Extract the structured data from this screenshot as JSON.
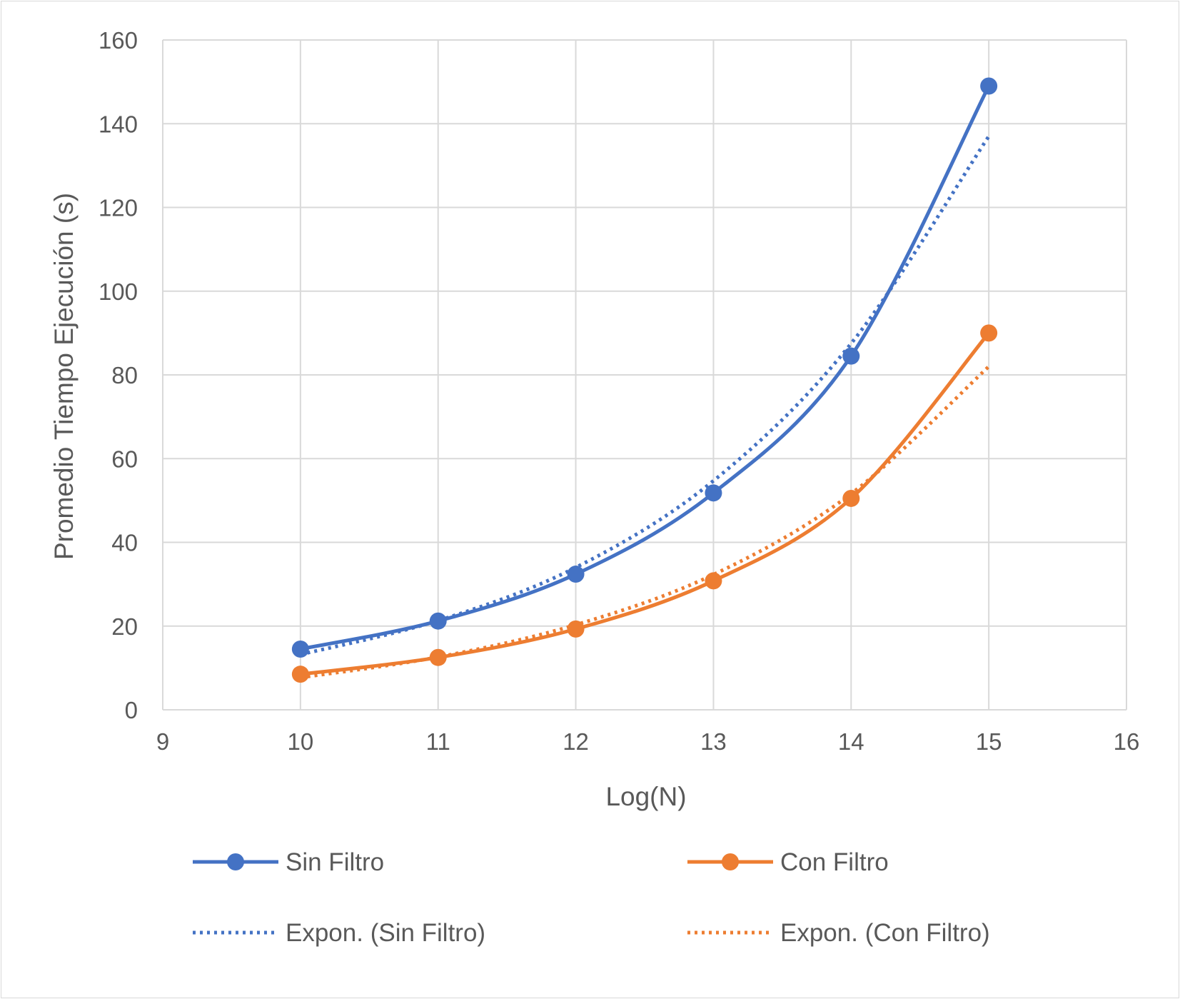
{
  "colors": {
    "sin_filtro": "#4472C4",
    "con_filtro": "#ED7D31",
    "grid": "#d9d9d9",
    "text": "#595959"
  },
  "chart_data": {
    "type": "scatter",
    "xlabel": "Log(N)",
    "ylabel": "Promedio Tiempo Ejecución (s)",
    "xlim": [
      9,
      16
    ],
    "ylim": [
      0,
      160
    ],
    "x_ticks": [
      "9",
      "10",
      "11",
      "12",
      "13",
      "14",
      "15",
      "16"
    ],
    "y_ticks": [
      "0",
      "20",
      "40",
      "60",
      "80",
      "100",
      "120",
      "140",
      "160"
    ],
    "grid": true,
    "legend_position": "bottom",
    "x": [
      10,
      11,
      12,
      13,
      14,
      15
    ],
    "series": [
      {
        "name": "Sin Filtro",
        "values": [
          14.5,
          21.2,
          32.4,
          51.8,
          84.5,
          149.0
        ],
        "line": "smooth",
        "markers": true,
        "color": "#4472C4"
      },
      {
        "name": "Con Filtro",
        "values": [
          8.5,
          12.5,
          19.3,
          30.8,
          50.5,
          90.0
        ],
        "line": "smooth",
        "markers": true,
        "color": "#ED7D31"
      },
      {
        "name": "Expon. (Sin Filtro)",
        "trendline_of": "Sin Filtro",
        "trend_values": [
          13.2,
          21.3,
          34.0,
          54.7,
          87.5,
          137.0
        ],
        "line": "dotted",
        "color": "#4472C4"
      },
      {
        "name": "Expon. (Con Filtro)",
        "trendline_of": "Con Filtro",
        "trend_values": [
          7.7,
          12.6,
          20.3,
          32.3,
          51.6,
          82.0
        ],
        "line": "dotted",
        "color": "#ED7D31"
      }
    ]
  }
}
